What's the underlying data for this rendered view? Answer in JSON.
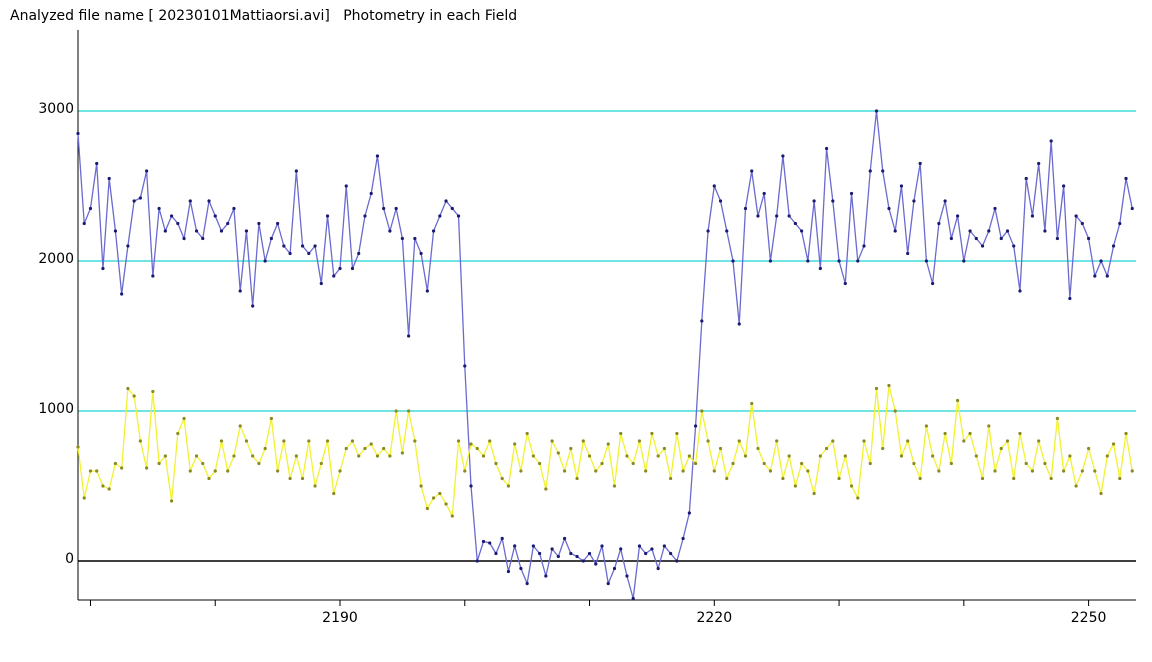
{
  "chart_data": {
    "type": "line",
    "title": "Analyzed file name [ 20230101Mattiaorsi.avi]   Photometry in each Field",
    "x": [
      2169,
      2169.5,
      2170,
      2170.5,
      2171,
      2171.5,
      2172,
      2172.5,
      2173,
      2173.5,
      2174,
      2174.5,
      2175,
      2175.5,
      2176,
      2176.5,
      2177,
      2177.5,
      2178,
      2178.5,
      2179,
      2179.5,
      2180,
      2180.5,
      2181,
      2181.5,
      2182,
      2182.5,
      2183,
      2183.5,
      2184,
      2184.5,
      2185,
      2185.5,
      2186,
      2186.5,
      2187,
      2187.5,
      2188,
      2188.5,
      2189,
      2189.5,
      2190,
      2190.5,
      2191,
      2191.5,
      2192,
      2192.5,
      2193,
      2193.5,
      2194,
      2194.5,
      2195,
      2195.5,
      2196,
      2196.5,
      2197,
      2197.5,
      2198,
      2198.5,
      2199,
      2199.5,
      2200,
      2200.5,
      2201,
      2201.5,
      2202,
      2202.5,
      2203,
      2203.5,
      2204,
      2204.5,
      2205,
      2205.5,
      2206,
      2206.5,
      2207,
      2207.5,
      2208,
      2208.5,
      2209,
      2209.5,
      2210,
      2210.5,
      2211,
      2211.5,
      2212,
      2212.5,
      2213,
      2213.5,
      2214,
      2214.5,
      2215,
      2215.5,
      2216,
      2216.5,
      2217,
      2217.5,
      2218,
      2218.5,
      2219,
      2219.5,
      2220,
      2220.5,
      2221,
      2221.5,
      2222,
      2222.5,
      2223,
      2223.5,
      2224,
      2224.5,
      2225,
      2225.5,
      2226,
      2226.5,
      2227,
      2227.5,
      2228,
      2228.5,
      2229,
      2229.5,
      2230,
      2230.5,
      2231,
      2231.5,
      2232,
      2232.5,
      2233,
      2233.5,
      2234,
      2234.5,
      2235,
      2235.5,
      2236,
      2236.5,
      2237,
      2237.5,
      2238,
      2238.5,
      2239,
      2239.5,
      2240,
      2240.5,
      2241,
      2241.5,
      2242,
      2242.5,
      2243,
      2243.5,
      2244,
      2244.5,
      2245,
      2245.5,
      2246,
      2246.5,
      2247,
      2247.5,
      2248,
      2248.5,
      2249,
      2249.5,
      2250,
      2250.5,
      2251,
      2251.5,
      2252,
      2252.5,
      2253,
      2253.5
    ],
    "series": [
      {
        "color": "#6a6ad0",
        "marker_color": "#1a1a70",
        "values": [
          2850,
          2250,
          2350,
          2650,
          1950,
          2550,
          2200,
          1780,
          2100,
          2400,
          2420,
          2600,
          1900,
          2350,
          2200,
          2300,
          2250,
          2150,
          2400,
          2200,
          2150,
          2400,
          2300,
          2200,
          2250,
          2350,
          1800,
          2200,
          1700,
          2250,
          2000,
          2150,
          2250,
          2100,
          2050,
          2600,
          2100,
          2050,
          2100,
          1850,
          2300,
          1900,
          1950,
          2500,
          1950,
          2050,
          2300,
          2450,
          2700,
          2350,
          2200,
          2350,
          2150,
          1500,
          2150,
          2050,
          1800,
          2200,
          2300,
          2400,
          2350,
          2300,
          1300,
          500,
          0,
          130,
          120,
          50,
          150,
          -70,
          100,
          -50,
          -150,
          100,
          50,
          -100,
          80,
          30,
          150,
          50,
          30,
          0,
          50,
          -20,
          100,
          -150,
          -50,
          80,
          -100,
          -250,
          100,
          50,
          80,
          -50,
          100,
          50,
          0,
          150,
          320,
          900,
          1600,
          2200,
          2500,
          2400,
          2200,
          2000,
          1580,
          2350,
          2600,
          2300,
          2450,
          2000,
          2300,
          2700,
          2300,
          2250,
          2200,
          2000,
          2400,
          1950,
          2750,
          2400,
          2000,
          1850,
          2450,
          2000,
          2100,
          2600,
          3000,
          2600,
          2350,
          2200,
          2500,
          2050,
          2400,
          2650,
          2000,
          1850,
          2250,
          2400,
          2150,
          2300,
          2000,
          2200,
          2150,
          2100,
          2200,
          2350,
          2150,
          2200,
          2100,
          1800,
          2550,
          2300,
          2650,
          2200,
          2800,
          2150,
          2500,
          1750,
          2300,
          2250,
          2150,
          1900,
          2000,
          1900,
          2100,
          2250,
          2550,
          2350
        ]
      },
      {
        "color": "#f2f230",
        "marker_color": "#8a8a20",
        "values": [
          760,
          420,
          600,
          600,
          500,
          480,
          650,
          620,
          1150,
          1100,
          800,
          620,
          1130,
          650,
          700,
          400,
          850,
          950,
          600,
          700,
          650,
          550,
          600,
          800,
          600,
          700,
          900,
          800,
          700,
          650,
          750,
          950,
          600,
          800,
          550,
          700,
          550,
          800,
          500,
          650,
          800,
          450,
          600,
          750,
          800,
          700,
          750,
          780,
          700,
          750,
          700,
          1000,
          720,
          1000,
          800,
          500,
          350,
          420,
          450,
          380,
          300,
          800,
          600,
          780,
          750,
          700,
          800,
          650,
          550,
          500,
          780,
          600,
          850,
          700,
          650,
          480,
          800,
          720,
          600,
          750,
          550,
          800,
          700,
          600,
          650,
          780,
          500,
          850,
          700,
          650,
          800,
          600,
          850,
          700,
          750,
          550,
          850,
          600,
          700,
          650,
          1000,
          800,
          600,
          750,
          550,
          650,
          800,
          700,
          1050,
          750,
          650,
          600,
          800,
          550,
          700,
          500,
          650,
          600,
          450,
          700,
          750,
          800,
          550,
          700,
          500,
          420,
          800,
          650,
          1150,
          750,
          1170,
          1000,
          700,
          800,
          650,
          550,
          900,
          700,
          600,
          850,
          650,
          1070,
          800,
          850,
          700,
          550,
          900,
          600,
          750,
          800,
          550,
          850,
          650,
          600,
          800,
          650,
          550,
          950,
          600,
          700,
          500,
          600,
          750,
          600,
          450,
          700,
          780,
          550,
          850,
          600
        ]
      }
    ],
    "xlim": [
      2169,
      2253.8
    ],
    "xticks": [
      2190,
      2220,
      2250
    ],
    "xminor_ticks": [
      2170,
      2180,
      2200,
      2210,
      2230,
      2240
    ],
    "ylim": [
      -260,
      3540
    ],
    "yticks": [
      0,
      1000,
      2000,
      3000
    ],
    "grid": true,
    "grid_color": "#40dada",
    "zero_line_color": "#000000"
  }
}
